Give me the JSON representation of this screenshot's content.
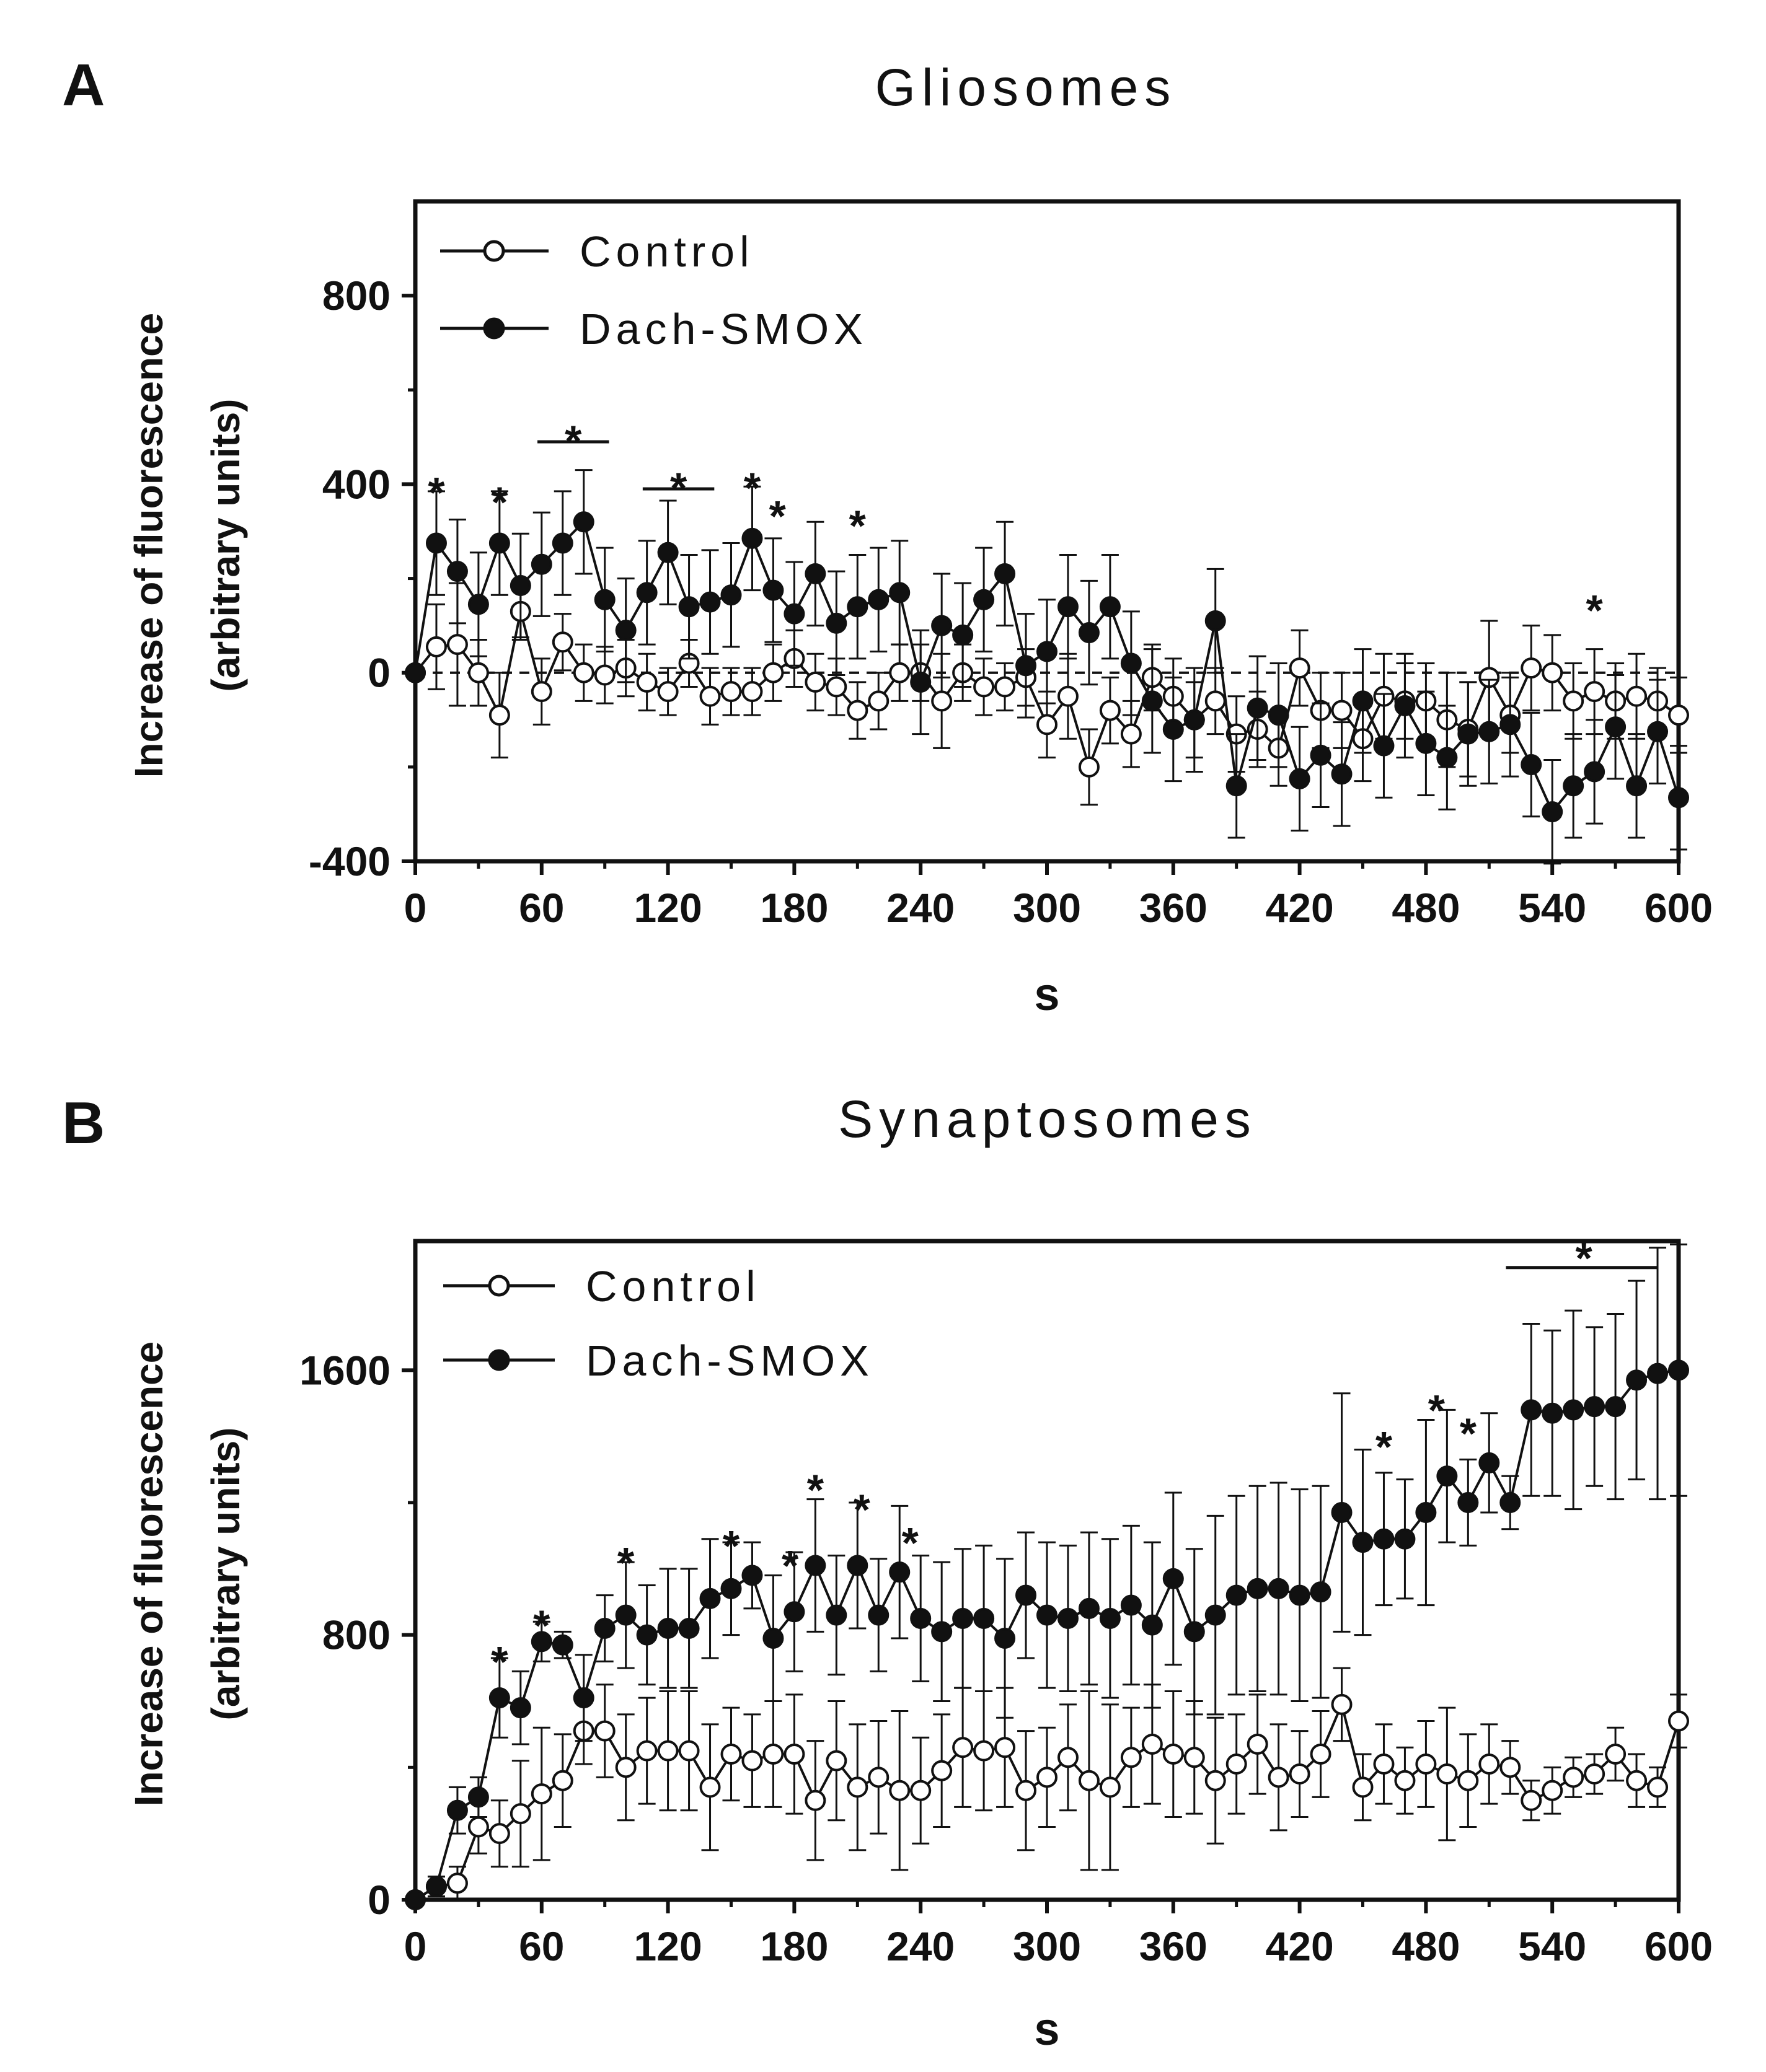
{
  "colors": {
    "ink": "#111111",
    "background": "#ffffff",
    "control_fill": "#ffffff",
    "dach_fill": "#111111"
  },
  "chart_data": [
    {
      "type": "line",
      "panel": "A",
      "title": "Gliosomes",
      "xlabel": "s",
      "ylabel_line1": "Increase of fluorescence",
      "ylabel_line2": "(arbitrary units)",
      "xlim": [
        0,
        600
      ],
      "ylim": [
        -400,
        1000
      ],
      "xticks": [
        "0",
        "60",
        "120",
        "180",
        "240",
        "300",
        "360",
        "420",
        "480",
        "540",
        "600"
      ],
      "yticks": [
        "-400",
        "0",
        "400",
        "800"
      ],
      "ytick_values": [
        -400,
        0,
        400,
        800
      ],
      "reference_line": 0,
      "legend": [
        "Control",
        "Dach-SMOX"
      ],
      "x": [
        0,
        10,
        20,
        30,
        40,
        50,
        60,
        70,
        80,
        90,
        100,
        110,
        120,
        130,
        140,
        150,
        160,
        170,
        180,
        190,
        200,
        210,
        220,
        230,
        240,
        250,
        260,
        270,
        280,
        290,
        300,
        310,
        320,
        330,
        340,
        350,
        360,
        370,
        380,
        390,
        400,
        410,
        420,
        430,
        440,
        450,
        460,
        470,
        480,
        490,
        500,
        510,
        520,
        530,
        540,
        550,
        560,
        570,
        580,
        590,
        600
      ],
      "series": [
        {
          "name": "Control",
          "values": [
            0,
            55,
            60,
            0,
            -90,
            130,
            -40,
            65,
            0,
            -5,
            10,
            -20,
            -40,
            20,
            -50,
            -40,
            -40,
            0,
            30,
            -20,
            -30,
            -80,
            -60,
            0,
            0,
            -60,
            0,
            -30,
            -30,
            -10,
            -110,
            -50,
            -200,
            -80,
            -130,
            -10,
            -50,
            -100,
            -60,
            -130,
            -120,
            -160,
            10,
            -80,
            -80,
            -140,
            -50,
            -60,
            -60,
            -100,
            -120,
            -10,
            -90,
            10,
            0,
            -60,
            -40,
            -60,
            -50,
            -60,
            -90
          ],
          "errors": [
            0,
            90,
            130,
            70,
            90,
            60,
            70,
            60,
            60,
            60,
            60,
            60,
            50,
            50,
            60,
            50,
            50,
            60,
            60,
            60,
            60,
            60,
            60,
            60,
            60,
            100,
            60,
            60,
            50,
            60,
            70,
            90,
            80,
            70,
            70,
            70,
            80,
            80,
            70,
            80,
            80,
            80,
            80,
            80,
            80,
            90,
            90,
            80,
            80,
            100,
            100,
            120,
            80,
            90,
            80,
            80,
            90,
            80,
            90,
            70,
            80
          ]
        },
        {
          "name": "Dach-SMOX",
          "values": [
            0,
            275,
            215,
            145,
            275,
            185,
            230,
            275,
            320,
            155,
            90,
            170,
            255,
            140,
            150,
            165,
            285,
            175,
            125,
            210,
            105,
            140,
            155,
            170,
            -20,
            100,
            80,
            155,
            210,
            15,
            45,
            140,
            85,
            140,
            20,
            -60,
            -120,
            -100,
            110,
            -240,
            -75,
            -90,
            -225,
            -175,
            -215,
            -60,
            -155,
            -70,
            -150,
            -180,
            -130,
            -125,
            -110,
            -195,
            -295,
            -240,
            -210,
            -115,
            -240,
            -125,
            -265
          ]
        }
      ],
      "significance": [
        {
          "label": "*",
          "x": 10,
          "y": 390
        },
        {
          "label": "*",
          "x": 40,
          "y": 370
        },
        {
          "label": "*",
          "x": 75,
          "y": 500,
          "bar_x": [
            58,
            92
          ],
          "bar_y": 490
        },
        {
          "label": "*",
          "x": 125,
          "y": 400,
          "bar_x": [
            108,
            142
          ],
          "bar_y": 390
        },
        {
          "label": "*",
          "x": 160,
          "y": 400
        },
        {
          "label": "*",
          "x": 172,
          "y": 340
        },
        {
          "label": "*",
          "x": 210,
          "y": 320
        },
        {
          "label": "*",
          "x": 560,
          "y": 140
        }
      ]
    },
    {
      "type": "line",
      "panel": "B",
      "title": "Synaptosomes",
      "xlabel": "s",
      "ylabel_line1": "Increase of fluorescence",
      "ylabel_line2": "(arbitrary units)",
      "xlim": [
        0,
        600
      ],
      "ylim": [
        0,
        1990
      ],
      "xticks": [
        "0",
        "60",
        "120",
        "180",
        "240",
        "300",
        "360",
        "420",
        "480",
        "540",
        "600"
      ],
      "yticks": [
        "0",
        "800",
        "1600"
      ],
      "ytick_values": [
        0,
        800,
        1600
      ],
      "legend": [
        "Control",
        "Dach-SMOX"
      ],
      "x": [
        0,
        10,
        20,
        30,
        40,
        50,
        60,
        70,
        80,
        90,
        100,
        110,
        120,
        130,
        140,
        150,
        160,
        170,
        180,
        190,
        200,
        210,
        220,
        230,
        240,
        250,
        260,
        270,
        280,
        290,
        300,
        310,
        320,
        330,
        340,
        350,
        360,
        370,
        380,
        390,
        400,
        410,
        420,
        430,
        440,
        450,
        460,
        470,
        480,
        490,
        500,
        510,
        520,
        530,
        540,
        550,
        560,
        570,
        580,
        590,
        600
      ],
      "series": [
        {
          "name": "Control",
          "values": [
            0,
            40,
            50,
            220,
            200,
            260,
            320,
            360,
            510,
            510,
            400,
            450,
            450,
            450,
            340,
            440,
            420,
            440,
            440,
            300,
            420,
            340,
            370,
            330,
            330,
            390,
            460,
            450,
            460,
            330,
            370,
            430,
            360,
            340,
            430,
            470,
            440,
            430,
            360,
            410,
            470,
            370,
            380,
            440,
            590,
            340,
            410,
            360,
            410,
            380,
            360,
            410,
            400,
            300,
            330,
            370,
            380,
            440,
            360,
            340,
            540
          ],
          "errors": [
            0,
            30,
            50,
            80,
            100,
            160,
            200,
            140,
            100,
            140,
            160,
            160,
            180,
            180,
            190,
            140,
            140,
            160,
            180,
            180,
            180,
            190,
            170,
            240,
            160,
            170,
            180,
            180,
            180,
            180,
            150,
            160,
            270,
            250,
            150,
            180,
            190,
            170,
            190,
            150,
            150,
            160,
            130,
            130,
            110,
            100,
            120,
            100,
            130,
            200,
            140,
            120,
            80,
            60,
            70,
            60,
            60,
            80,
            80,
            60,
            80
          ]
        },
        {
          "name": "Dach-SMOX",
          "values": [
            0,
            40,
            270,
            310,
            610,
            580,
            780,
            770,
            610,
            820,
            860,
            800,
            820,
            820,
            910,
            940,
            980,
            790,
            870,
            1010,
            860,
            1010,
            860,
            990,
            850,
            810,
            850,
            850,
            790,
            920,
            860,
            850,
            880,
            850,
            890,
            830,
            970,
            810,
            860,
            920,
            940,
            940,
            920,
            930,
            1170,
            1080,
            1090,
            1090,
            1170,
            1280,
            1200,
            1320,
            1200,
            1480,
            1470,
            1480,
            1490,
            1490,
            1570,
            1590,
            1600
          ],
          "errors": [
            0,
            30,
            70,
            60,
            120,
            110,
            60,
            40,
            130,
            100,
            160,
            150,
            180,
            180,
            180,
            140,
            100,
            190,
            180,
            200,
            180,
            190,
            170,
            200,
            190,
            210,
            210,
            220,
            240,
            190,
            220,
            220,
            230,
            240,
            240,
            250,
            260,
            250,
            300,
            300,
            310,
            320,
            320,
            320,
            360,
            280,
            200,
            180,
            280,
            200,
            130,
            150,
            80,
            260,
            250,
            300,
            240,
            280,
            300,
            380,
            380
          ]
        }
      ],
      "significance": [
        {
          "label": "*",
          "x": 40,
          "y": 730
        },
        {
          "label": "*",
          "x": 60,
          "y": 840
        },
        {
          "label": "*",
          "x": 100,
          "y": 1030
        },
        {
          "label": "*",
          "x": 150,
          "y": 1080
        },
        {
          "label": "*",
          "x": 178,
          "y": 1020
        },
        {
          "label": "*",
          "x": 190,
          "y": 1250
        },
        {
          "label": "*",
          "x": 212,
          "y": 1190
        },
        {
          "label": "*",
          "x": 235,
          "y": 1090
        },
        {
          "label": "*",
          "x": 460,
          "y": 1380
        },
        {
          "label": "*",
          "x": 485,
          "y": 1490
        },
        {
          "label": "*",
          "x": 500,
          "y": 1420
        },
        {
          "label": "*",
          "x": 555,
          "y": 1950,
          "bar_x": [
            518,
            590
          ],
          "bar_y": 1910
        }
      ]
    }
  ]
}
